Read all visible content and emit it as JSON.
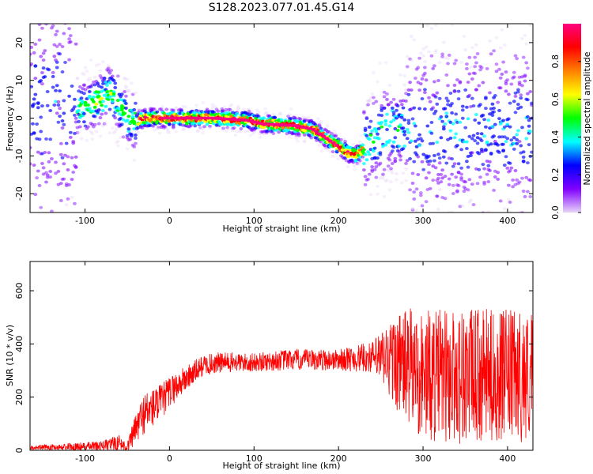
{
  "chart_data": [
    {
      "type": "heatmap",
      "title": "S128.2023.077.01.45.G14",
      "xlabel": "Height of straight line (km)",
      "ylabel": "Frequency (Hz)",
      "xlim": [
        -165,
        430
      ],
      "ylim": [
        -25,
        25
      ],
      "x_ticks": [
        -100,
        0,
        100,
        200,
        300,
        400
      ],
      "y_ticks": [
        -20,
        -10,
        0,
        10,
        20
      ],
      "colorbar": {
        "label": "Normalized spectral amplitude",
        "range": [
          0.0,
          1.0
        ],
        "ticks": [
          "0.0",
          "0.2",
          "0.4",
          "0.6",
          "0.8"
        ],
        "colors": [
          "#e8d4f8",
          "#8000ff",
          "#0000ff",
          "#00ffff",
          "#00ff00",
          "#ffff00",
          "#ff8000",
          "#ff0000",
          "#ff0080"
        ]
      },
      "ridge": {
        "x": [
          -100,
          -80,
          -70,
          -60,
          -50,
          -40,
          -30,
          -20,
          0,
          50,
          90,
          110,
          150,
          170,
          190,
          210,
          220,
          240,
          260
        ],
        "y": [
          3,
          5,
          7,
          4,
          0,
          -1,
          0,
          0,
          0,
          0,
          -0.5,
          -1.5,
          -2,
          -3,
          -6,
          -9,
          -10,
          -6,
          -3
        ]
      },
      "grid": false
    },
    {
      "type": "line",
      "title": "",
      "xlabel": "Height of straight line (km)",
      "ylabel": "SNR (10 * v/v)",
      "xlim": [
        -165,
        430
      ],
      "ylim": [
        0,
        710
      ],
      "x_ticks": [
        -100,
        0,
        100,
        200,
        300,
        400
      ],
      "y_ticks": [
        0,
        200,
        400,
        600
      ],
      "color": "#ff0000",
      "envelope": {
        "x": [
          -165,
          -80,
          -60,
          -50,
          -40,
          -30,
          -10,
          0,
          20,
          40,
          60,
          100,
          140,
          200,
          240,
          260,
          280,
          300,
          340,
          380,
          430
        ],
        "center": [
          10,
          15,
          30,
          10,
          80,
          140,
          180,
          220,
          270,
          320,
          330,
          330,
          340,
          340,
          350,
          340,
          320,
          280,
          280,
          280,
          280
        ],
        "amplitude": [
          8,
          20,
          30,
          20,
          60,
          80,
          70,
          60,
          50,
          40,
          40,
          35,
          40,
          40,
          60,
          150,
          220,
          250,
          260,
          250,
          250
        ]
      },
      "grid": false
    }
  ]
}
